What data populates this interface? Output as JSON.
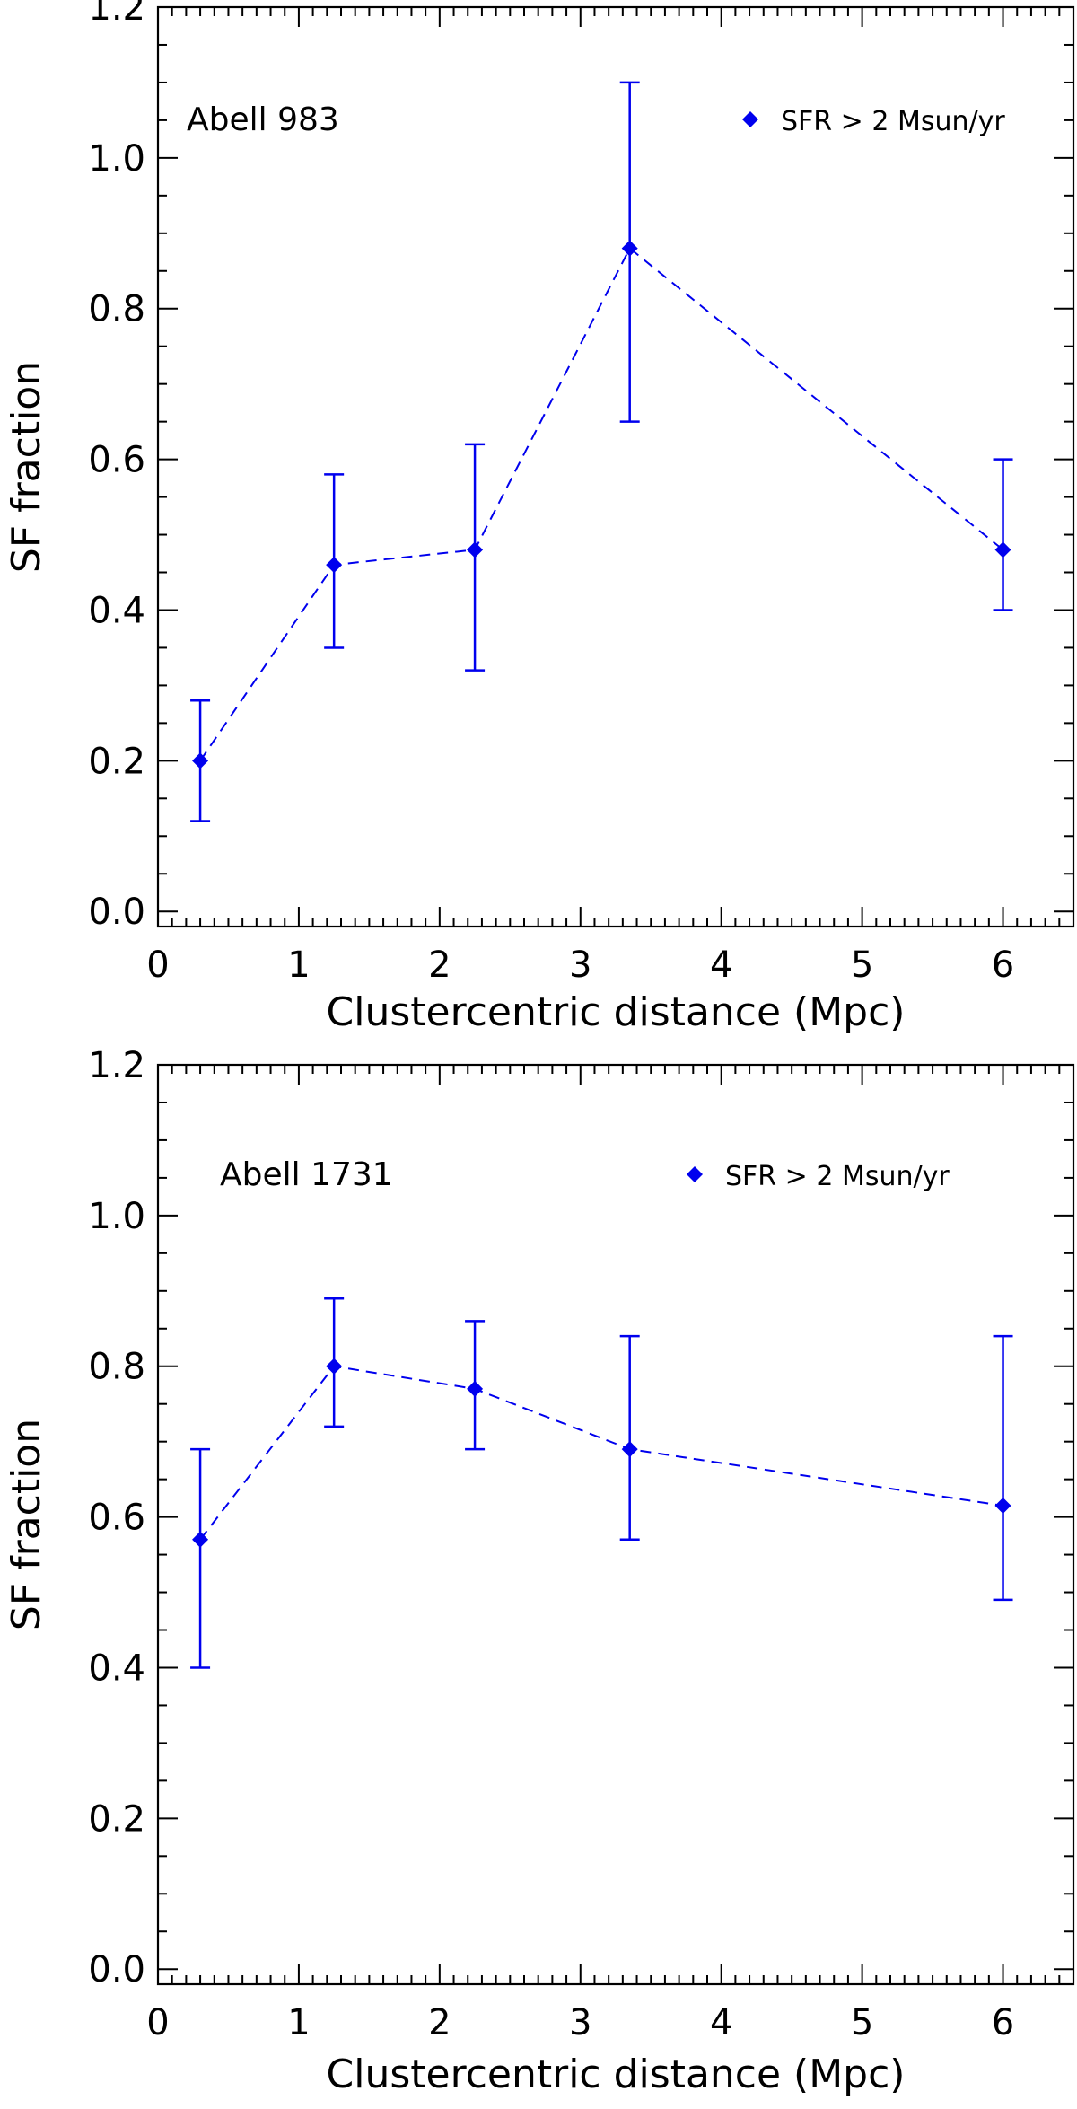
{
  "colors": {
    "series": "#0000ee",
    "axis": "#000000",
    "background": "#ffffff"
  },
  "chart_data": [
    {
      "type": "line",
      "title": "",
      "annotation": "Abell 983",
      "xlabel": "Clustercentric distance (Mpc)",
      "ylabel": "SF fraction",
      "xlim": [
        0,
        6.5
      ],
      "ylim": [
        -0.02,
        1.2
      ],
      "xticks": [
        0,
        1,
        2,
        3,
        4,
        5,
        6
      ],
      "xtick_labels": [
        "0",
        "1",
        "2",
        "3",
        "4",
        "5",
        "6"
      ],
      "yticks": [
        0.0,
        0.2,
        0.4,
        0.6,
        0.8,
        1.0,
        1.2
      ],
      "ytick_labels": [
        "0.0",
        "0.2",
        "0.4",
        "0.6",
        "0.8",
        "1.0",
        "1.2"
      ],
      "legend": {
        "label": "SFR > 2 Msun/yr",
        "location": "top-right",
        "marker": "diamond"
      },
      "series": [
        {
          "name": "SFR > 2 Msun/yr",
          "line_style": "dashed",
          "marker": "diamond",
          "x": [
            0.3,
            1.25,
            2.25,
            3.35,
            6.0
          ],
          "y": [
            0.2,
            0.46,
            0.48,
            0.88,
            0.48
          ],
          "err_low": [
            0.12,
            0.35,
            0.32,
            0.65,
            0.4
          ],
          "err_high": [
            0.28,
            0.58,
            0.62,
            1.1,
            0.6
          ]
        }
      ]
    },
    {
      "type": "line",
      "title": "",
      "annotation": "Abell 1731",
      "xlabel": "Clustercentric distance (Mpc)",
      "ylabel": "SF fraction",
      "xlim": [
        0,
        6.5
      ],
      "ylim": [
        -0.02,
        1.2
      ],
      "xticks": [
        0,
        1,
        2,
        3,
        4,
        5,
        6
      ],
      "xtick_labels": [
        "0",
        "1",
        "2",
        "3",
        "4",
        "5",
        "6"
      ],
      "yticks": [
        0.0,
        0.2,
        0.4,
        0.6,
        0.8,
        1.0,
        1.2
      ],
      "ytick_labels": [
        "0.0",
        "0.2",
        "0.4",
        "0.6",
        "0.8",
        "1.0",
        "1.2"
      ],
      "legend": {
        "label": "SFR > 2 Msun/yr",
        "location": "top-right",
        "marker": "diamond"
      },
      "series": [
        {
          "name": "SFR > 2 Msun/yr",
          "line_style": "dashed",
          "marker": "diamond",
          "x": [
            0.3,
            1.25,
            2.25,
            3.35,
            6.0
          ],
          "y": [
            0.57,
            0.8,
            0.77,
            0.69,
            0.615
          ],
          "err_low": [
            0.4,
            0.72,
            0.69,
            0.57,
            0.49
          ],
          "err_high": [
            0.69,
            0.89,
            0.86,
            0.84,
            0.84
          ]
        }
      ]
    }
  ]
}
